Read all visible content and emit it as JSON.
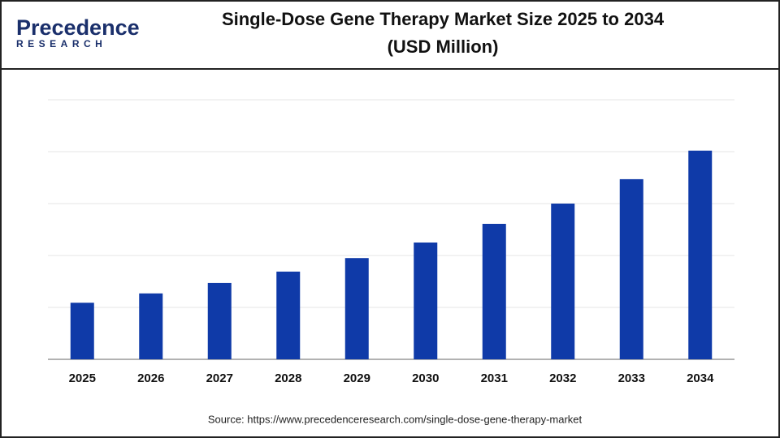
{
  "logo": {
    "name": "Precedence",
    "subname": "RESEARCH"
  },
  "chart_data": {
    "type": "bar",
    "title": [
      "Single-Dose Gene Therapy Market  Size 2025 to 2034",
      "(USD Million)"
    ],
    "categories": [
      "2025",
      "2026",
      "2027",
      "2028",
      "2029",
      "2030",
      "2031",
      "2032",
      "2033",
      "2034"
    ],
    "values": [
      1.09,
      1.27,
      1.47,
      1.69,
      1.95,
      2.25,
      2.61,
      3.0,
      3.47,
      4.02
    ],
    "color": "#0f3aa8",
    "ylim": [
      0,
      5
    ],
    "yticks": [
      0,
      1,
      2,
      3,
      4,
      5
    ],
    "show_ytick_labels": false,
    "grid": true,
    "source": "Source: https://www.precedenceresearch.com/single-dose-gene-therapy-market"
  }
}
